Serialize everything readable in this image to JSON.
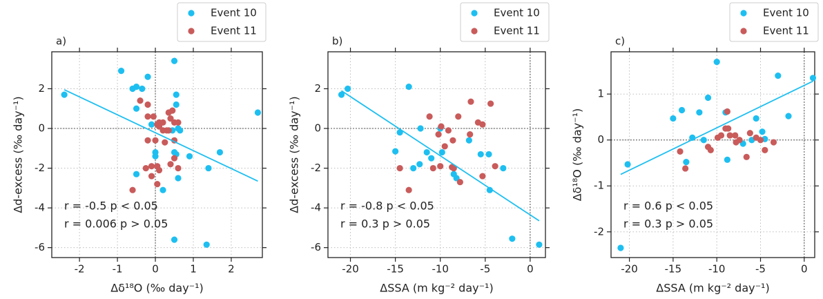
{
  "chart_data": [
    {
      "type": "scatter",
      "label": "a)",
      "xlabel": "Δδ¹⁸O (‰ day⁻¹)",
      "ylabel": "Δd-excess (‰ day⁻¹)",
      "xlim": [
        -2.73,
        2.82
      ],
      "ylim": [
        -6.5,
        3.86
      ],
      "xticks": [
        -2,
        -1,
        0,
        1,
        2
      ],
      "yticks": [
        -6,
        -4,
        -2,
        0,
        2
      ],
      "grid": true,
      "legend": "upper right",
      "series": [
        {
          "name": "Event 10",
          "color": "#1ebff0",
          "x": [
            -2.4,
            -0.9,
            -0.6,
            -0.5,
            -0.35,
            -0.2,
            -0.5,
            0.5,
            0.55,
            0.55,
            0.6,
            0.65,
            -0.1,
            0.0,
            0.0,
            0.5,
            0.55,
            0.9,
            0.6,
            0.2,
            0.5,
            1.35,
            1.4,
            1.7,
            2.7,
            -0.5,
            0.45
          ],
          "y": [
            1.7,
            2.9,
            2.0,
            2.1,
            2.0,
            2.6,
            1.0,
            3.4,
            1.2,
            1.7,
            0.0,
            -0.1,
            0.2,
            -1.2,
            -1.4,
            -1.2,
            -1.3,
            -1.4,
            -2.5,
            -3.1,
            -5.6,
            -5.85,
            -2.0,
            -1.2,
            0.8,
            -2.3,
            -0.1
          ]
        },
        {
          "name": "Event 11",
          "color": "#c95b5b",
          "x": [
            -0.6,
            -0.4,
            -0.2,
            -0.2,
            -0.05,
            0.05,
            0.1,
            0.2,
            0.35,
            0.4,
            0.45,
            0.5,
            0.6,
            0.3,
            0.2,
            -0.2,
            0.0,
            0.25,
            0.5,
            0.5,
            0.4,
            0.6,
            -0.25,
            -0.1,
            0.05,
            0.1,
            -0.1,
            0.05,
            0.35,
            0.1
          ],
          "y": [
            -3.1,
            1.4,
            1.2,
            0.6,
            0.6,
            0.2,
            0.3,
            0.3,
            0.8,
            0.5,
            0.9,
            0.3,
            0.3,
            -0.1,
            -0.1,
            -0.6,
            -0.6,
            -0.7,
            -0.6,
            -1.5,
            -1.8,
            -2.0,
            -2.0,
            -1.9,
            -1.9,
            -2.1,
            -2.4,
            -2.8,
            -0.1,
            0.1
          ]
        }
      ],
      "fit": {
        "color": "#1ebff0",
        "x": [
          -2.4,
          2.7
        ],
        "y": [
          1.95,
          -2.65
        ]
      },
      "annotations": [
        {
          "text": "r = -0.5 p < 0.05",
          "color": "#1ebff0"
        },
        {
          "text": "r = 0.006 p > 0.05",
          "color": "#c95b5b"
        }
      ]
    },
    {
      "type": "scatter",
      "label": "b)",
      "xlabel": "ΔSSA (m kg⁻² day⁻¹)",
      "ylabel": "Δd-excess (‰ day⁻¹)",
      "xlim": [
        -22.5,
        1.7
      ],
      "ylim": [
        -6.5,
        3.86
      ],
      "xticks": [
        -20,
        -15,
        -10,
        -5,
        0
      ],
      "yticks": [
        -6,
        -4,
        -2,
        0,
        2
      ],
      "grid": true,
      "legend": "upper right",
      "series": [
        {
          "name": "Event 10",
          "color": "#1ebff0",
          "x": [
            -21,
            -20.3,
            -13.5,
            -14.5,
            -15,
            -12.2,
            -13,
            -12.3,
            -11.5,
            -11,
            -9.8,
            -10,
            -8.5,
            -8.5,
            -8.2,
            -6.8,
            -5.5,
            -4.6,
            -4.5,
            -3,
            -2,
            1
          ],
          "y": [
            1.7,
            2.0,
            2.1,
            -0.2,
            -1.15,
            0.0,
            -2.0,
            -1.8,
            -1.2,
            -1.5,
            -1.2,
            0.0,
            -2.0,
            -2.3,
            -2.5,
            -0.6,
            -1.3,
            -1.3,
            -3.1,
            -2.0,
            -5.55,
            -5.85
          ]
        },
        {
          "name": "Event 11",
          "color": "#c95b5b",
          "x": [
            -13.5,
            -14.5,
            -11.2,
            -10.2,
            -9.9,
            -9.1,
            -8,
            -8.6,
            -9.5,
            -10,
            -10.8,
            -8.5,
            -7.8,
            -6.7,
            -6.6,
            -5.8,
            -5.3,
            -4.4,
            -5.3,
            -3.9,
            -8.7
          ],
          "y": [
            -3.1,
            -2.0,
            0.6,
            -0.3,
            0.1,
            -0.1,
            0.6,
            -0.6,
            -0.9,
            -1.9,
            -2.0,
            -2.0,
            -2.7,
            -0.3,
            1.35,
            0.3,
            0.2,
            1.25,
            -2.4,
            -1.9,
            -1.95
          ]
        }
      ],
      "fit": {
        "color": "#1ebff0",
        "x": [
          -21,
          1
        ],
        "y": [
          1.9,
          -4.65
        ]
      },
      "annotations": [
        {
          "text": "r = -0.8 p < 0.05",
          "color": "#1ebff0"
        },
        {
          "text": "r = 0.3 p > 0.05",
          "color": "#c95b5b"
        }
      ]
    },
    {
      "type": "scatter",
      "label": "c)",
      "xlabel": "ΔSSA (m kg⁻² day⁻¹)",
      "ylabel": "Δδ¹⁸O (‰ day⁻¹)",
      "xlim": [
        -22.1,
        1.2
      ],
      "ylim": [
        -2.56,
        1.92
      ],
      "xticks": [
        -20,
        -15,
        -10,
        -5,
        0
      ],
      "yticks": [
        -2,
        -1,
        0,
        1
      ],
      "grid": true,
      "legend": "upper right",
      "series": [
        {
          "name": "Event 10",
          "color": "#1ebff0",
          "x": [
            -21,
            -20.2,
            -15,
            -14,
            -13.5,
            -12.8,
            -12,
            -11.5,
            -11,
            -10,
            -9,
            -8.8,
            -7,
            -6,
            -5.5,
            -4.8,
            -4.5,
            -3,
            -1.8,
            1
          ],
          "y": [
            -2.35,
            -0.53,
            0.47,
            0.65,
            -0.48,
            0.05,
            0.6,
            0.0,
            0.92,
            1.7,
            0.6,
            -0.43,
            -0.08,
            0.0,
            0.47,
            0.18,
            0.02,
            1.4,
            0.52,
            1.35
          ]
        },
        {
          "name": "Event 11",
          "color": "#c95b5b",
          "x": [
            -14.2,
            -13.6,
            -11,
            -10.7,
            -9.9,
            -9.5,
            -9,
            -8.7,
            -8.5,
            -7.8,
            -7.4,
            -6.6,
            -6.2,
            -5.5,
            -5,
            -4.5,
            -3.5,
            -8.8,
            -7.9
          ],
          "y": [
            -0.25,
            -0.62,
            -0.15,
            -0.22,
            0.05,
            0.1,
            0.25,
            0.25,
            0.1,
            -0.05,
            0.0,
            -0.37,
            0.15,
            0.05,
            0.0,
            -0.22,
            -0.05,
            0.62,
            0.1
          ]
        }
      ],
      "fit": {
        "color": "#1ebff0",
        "x": [
          -21,
          1
        ],
        "y": [
          -0.75,
          1.28
        ]
      },
      "annotations": [
        {
          "text": "r = 0.6 p < 0.05",
          "color": "#1ebff0"
        },
        {
          "text": "r = 0.3 p > 0.05",
          "color": "#c95b5b"
        }
      ]
    }
  ]
}
